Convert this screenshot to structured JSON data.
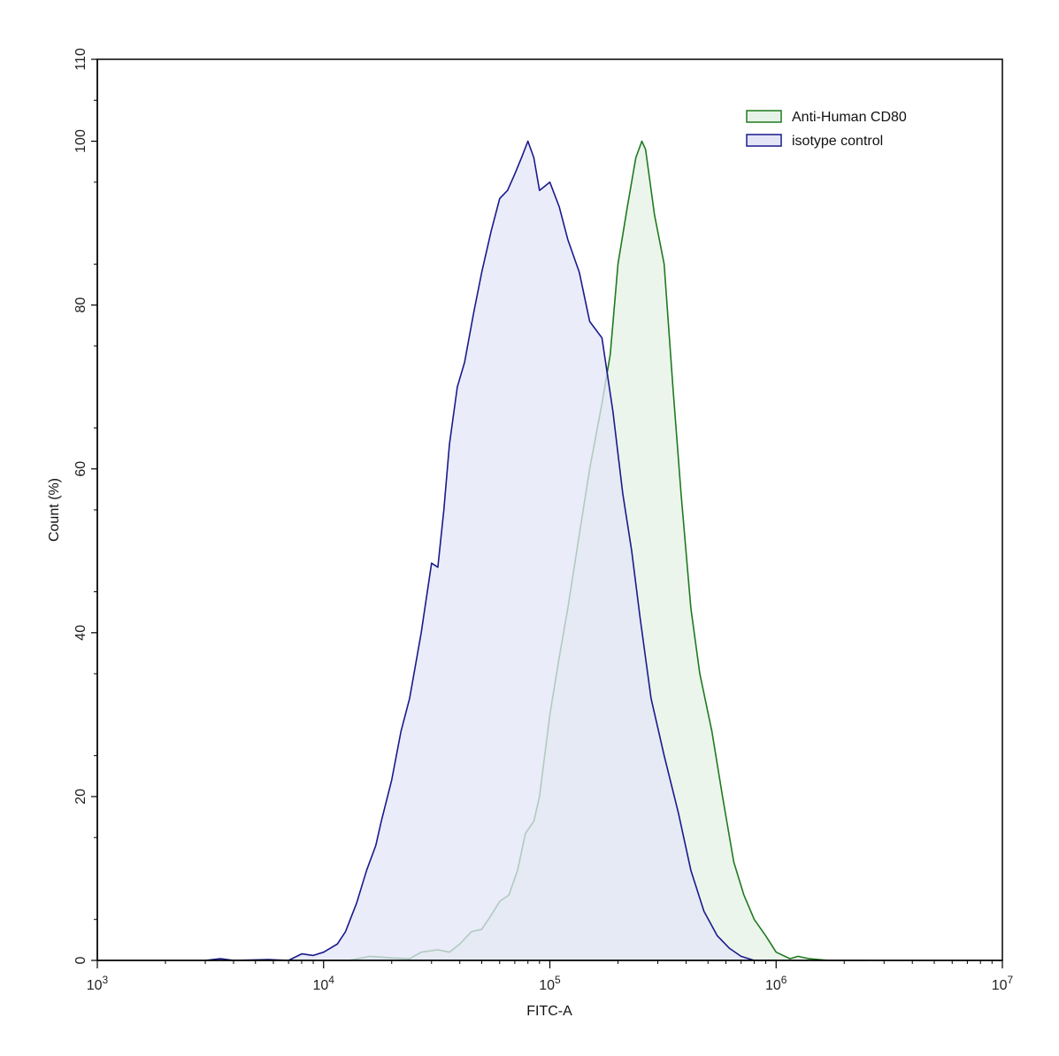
{
  "chart_data": {
    "type": "area",
    "title": "",
    "xlabel": "FITC-A",
    "ylabel": "Count  (%)",
    "x_scale": "log",
    "xlim": [
      1000,
      10000000
    ],
    "ylim": [
      0,
      110
    ],
    "x_ticks": [
      {
        "value": 1000,
        "base": "10",
        "exp": "3"
      },
      {
        "value": 10000,
        "base": "10",
        "exp": "4"
      },
      {
        "value": 100000,
        "base": "10",
        "exp": "5"
      },
      {
        "value": 1000000,
        "base": "10",
        "exp": "6"
      },
      {
        "value": 10000000,
        "base": "10",
        "exp": "7"
      }
    ],
    "y_ticks": [
      0,
      20,
      40,
      60,
      80,
      100,
      110
    ],
    "grid": false,
    "legend_position": "top-right",
    "series": [
      {
        "name": "Anti-Human CD80",
        "stroke": "#1f7a1f",
        "fill": "#e6f2e6",
        "points": [
          [
            10000,
            0
          ],
          [
            13000,
            0
          ],
          [
            16000,
            0.5
          ],
          [
            20000,
            0.3
          ],
          [
            24000,
            0.2
          ],
          [
            27000,
            1.0
          ],
          [
            32000,
            1.3
          ],
          [
            36000,
            1.0
          ],
          [
            40000,
            2.0
          ],
          [
            45000,
            3.5
          ],
          [
            50000,
            3.8
          ],
          [
            55000,
            5.5
          ],
          [
            60000,
            7.2
          ],
          [
            66000,
            8.0
          ],
          [
            72000,
            11.0
          ],
          [
            78000,
            15.5
          ],
          [
            85000,
            17.0
          ],
          [
            90000,
            20.0
          ],
          [
            100000,
            30.0
          ],
          [
            110000,
            37.0
          ],
          [
            120000,
            43.0
          ],
          [
            135000,
            52.0
          ],
          [
            150000,
            60.0
          ],
          [
            170000,
            68.0
          ],
          [
            185000,
            74.0
          ],
          [
            200000,
            85.0
          ],
          [
            220000,
            92.0
          ],
          [
            240000,
            98.0
          ],
          [
            255000,
            100.0
          ],
          [
            265000,
            99.0
          ],
          [
            290000,
            91.0
          ],
          [
            320000,
            85.0
          ],
          [
            350000,
            70.0
          ],
          [
            380000,
            57.0
          ],
          [
            420000,
            43.0
          ],
          [
            460000,
            35.0
          ],
          [
            520000,
            28.0
          ],
          [
            580000,
            20.0
          ],
          [
            650000,
            12.0
          ],
          [
            720000,
            8.0
          ],
          [
            800000,
            5.0
          ],
          [
            900000,
            3.0
          ],
          [
            1000000,
            1.0
          ],
          [
            1150000,
            0.2
          ],
          [
            1250000,
            0.5
          ],
          [
            1400000,
            0.2
          ],
          [
            1700000,
            0
          ],
          [
            2500000,
            0
          ]
        ]
      },
      {
        "name": "isotype control",
        "stroke": "#1a1a8c",
        "fill": "#e3e5f7",
        "points": [
          [
            3000,
            0
          ],
          [
            3500,
            0.2
          ],
          [
            4000,
            0
          ],
          [
            5700,
            0.1
          ],
          [
            7000,
            0
          ],
          [
            8000,
            0.8
          ],
          [
            9000,
            0.6
          ],
          [
            10000,
            1.0
          ],
          [
            11500,
            2.0
          ],
          [
            12500,
            3.5
          ],
          [
            14000,
            7.0
          ],
          [
            15500,
            11.0
          ],
          [
            17000,
            14.0
          ],
          [
            18000,
            17.0
          ],
          [
            20000,
            22.0
          ],
          [
            22000,
            28.0
          ],
          [
            24000,
            32.0
          ],
          [
            27000,
            40.0
          ],
          [
            30000,
            48.5
          ],
          [
            32000,
            48.0
          ],
          [
            34000,
            55.0
          ],
          [
            36000,
            63.0
          ],
          [
            39000,
            70.0
          ],
          [
            42000,
            73.0
          ],
          [
            46000,
            79.0
          ],
          [
            50000,
            84.0
          ],
          [
            55000,
            89.0
          ],
          [
            60000,
            93.0
          ],
          [
            65000,
            94.0
          ],
          [
            70000,
            96.0
          ],
          [
            75000,
            98.0
          ],
          [
            80000,
            100.0
          ],
          [
            85000,
            98.0
          ],
          [
            90000,
            94.0
          ],
          [
            95000,
            94.5
          ],
          [
            100000,
            95.0
          ],
          [
            110000,
            92.0
          ],
          [
            120000,
            88.0
          ],
          [
            135000,
            84.0
          ],
          [
            150000,
            78.0
          ],
          [
            170000,
            76.0
          ],
          [
            190000,
            67.0
          ],
          [
            210000,
            57.0
          ],
          [
            230000,
            50.0
          ],
          [
            250000,
            42.0
          ],
          [
            280000,
            32.0
          ],
          [
            320000,
            25.0
          ],
          [
            370000,
            18.0
          ],
          [
            420000,
            11.0
          ],
          [
            480000,
            6.0
          ],
          [
            550000,
            3.0
          ],
          [
            620000,
            1.5
          ],
          [
            700000,
            0.5
          ],
          [
            800000,
            0
          ],
          [
            1000000,
            0
          ]
        ]
      }
    ]
  }
}
